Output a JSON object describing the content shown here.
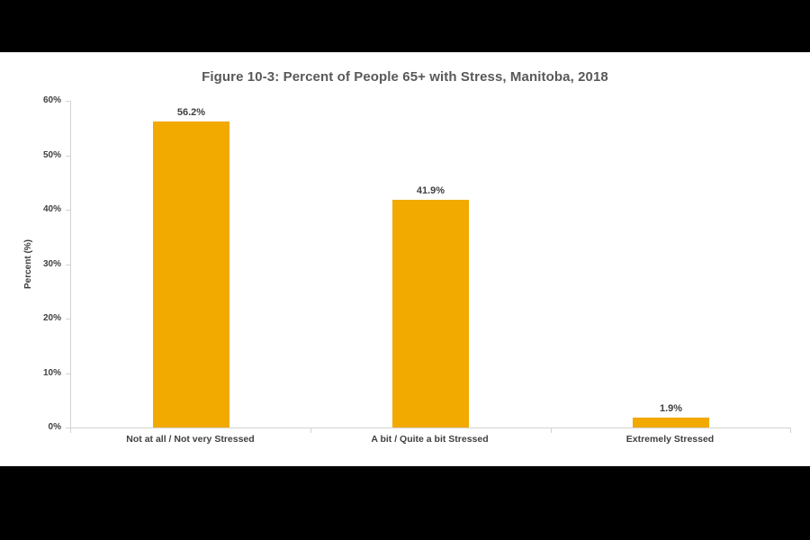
{
  "chart_data": {
    "type": "bar",
    "title": "Figure 10-3: Percent of People 65+ with Stress, Manitoba, 2018",
    "categories": [
      "Not at all / Not very Stressed",
      "A bit / Quite a bit Stressed",
      "Extremely Stressed"
    ],
    "values": [
      56.2,
      41.9,
      1.9
    ],
    "value_labels": [
      "56.2%",
      "41.9%",
      "1.9%"
    ],
    "xlabel": "",
    "ylabel": "Percent (%)",
    "ylim": [
      0,
      60
    ],
    "ytick_labels": [
      "0%",
      "10%",
      "20%",
      "30%",
      "40%",
      "50%",
      "60%"
    ],
    "grid": false,
    "legend": false,
    "bar_color": "#F2A900",
    "axis_color": "#D2D2D2",
    "label_color": "#404040",
    "title_color": "#595959",
    "background_color": "#FFFFFF",
    "letterbox_color": "#000000"
  }
}
